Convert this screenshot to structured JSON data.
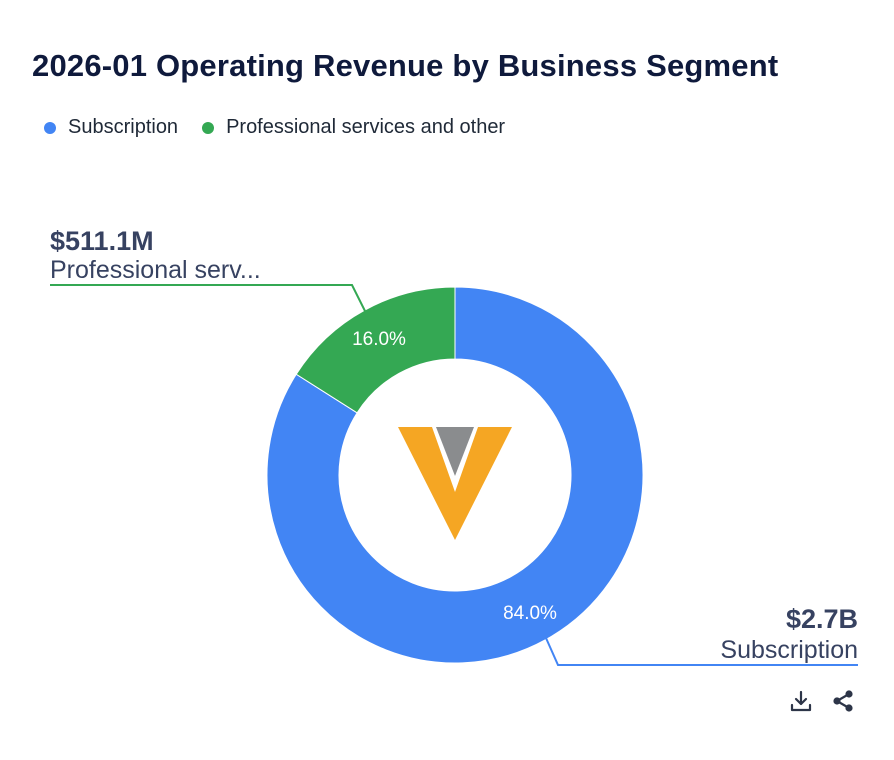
{
  "chart_data": {
    "type": "pie",
    "variant": "donut",
    "title": "2026-01 Operating Revenue by Business Segment",
    "legend": [
      "Subscription",
      "Professional services and other"
    ],
    "slices": [
      {
        "name": "Subscription",
        "percent": 84.0,
        "percent_label": "84.0%",
        "value_label": "$2.7B",
        "callout_name": "Subscription",
        "color": "#4285f4"
      },
      {
        "name": "Professional services and other",
        "percent": 16.0,
        "percent_label": "16.0%",
        "value_label": "$511.1M",
        "callout_name": "Professional serv...",
        "color": "#34a853"
      }
    ],
    "center_logo": "veeva-v-logo",
    "legend_position": "top-left"
  },
  "toolbar": {
    "download_icon": "download-icon",
    "share_icon": "share-icon"
  }
}
